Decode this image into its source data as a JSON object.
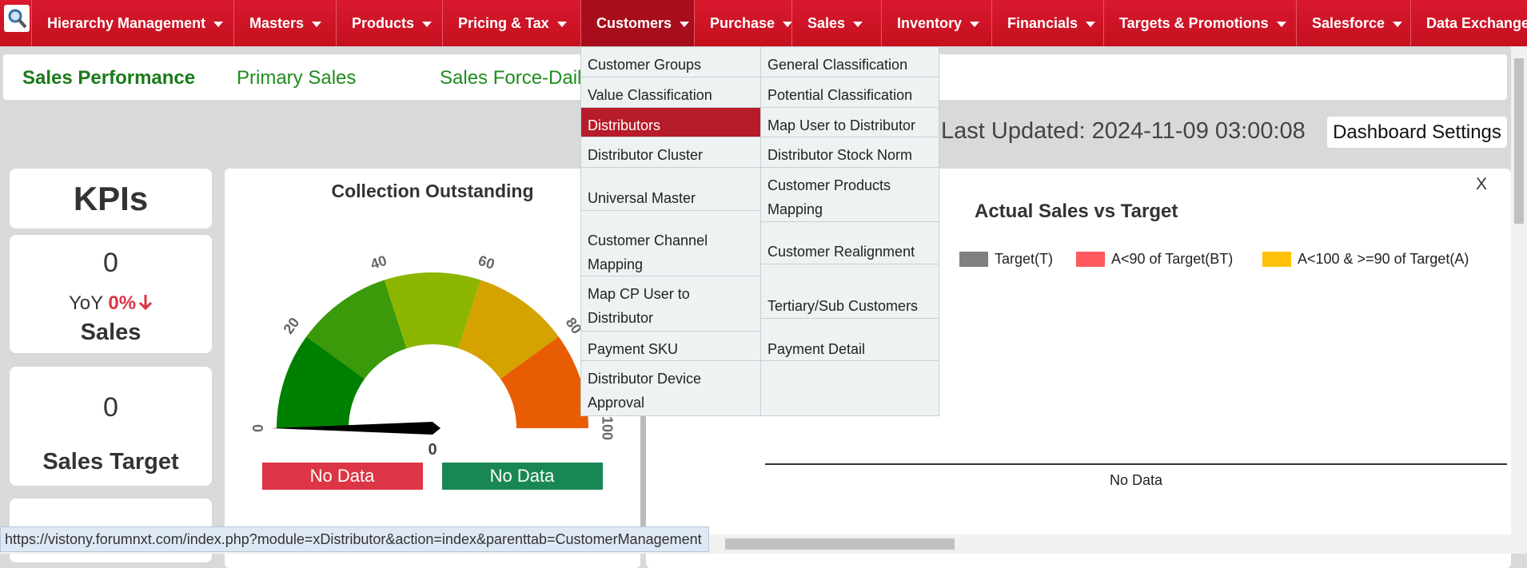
{
  "nav": {
    "menu": [
      "Hierarchy Management",
      "Masters",
      "Products",
      "Pricing & Tax",
      "Customers",
      "Purchase",
      "Sales",
      "Inventory",
      "Financials",
      "Targets & Promotions",
      "Salesforce",
      "Data Exchange"
    ]
  },
  "tabs": [
    "Sales Performance",
    "Primary Sales",
    "Sales Force-Daily"
  ],
  "dropdown": {
    "column_1": [
      "Customer Groups",
      "Value Classification",
      "Distributors",
      "Distributor Cluster",
      "Universal Master",
      "Customer Channel Mapping",
      "Map CP User to Distributor",
      "Payment SKU",
      "Distributor Device Approval"
    ],
    "column_2": [
      "General Classification",
      "Potential Classification",
      "Map User to Distributor",
      "Distributor Stock Norm",
      "Customer Products Mapping",
      "Customer Realignment",
      "Tertiary/Sub Customers",
      "Payment Detail"
    ]
  },
  "last_updated": "Last Updated: 2024-11-09 03:00:08",
  "dashboard_settings": "Dashboard Settings",
  "kpis": {
    "title": "KPIs",
    "cards": [
      {
        "value": 0,
        "yoy_label": "YoY",
        "yoy_value": "0%",
        "label": "Sales"
      },
      {
        "value": 0,
        "label": "Sales Target"
      }
    ]
  },
  "gauge": {
    "title": "Collection Outstanding",
    "ticks": [
      0,
      20,
      40,
      60,
      80,
      100
    ],
    "value": 0,
    "buttons": [
      "No Data",
      "No Data"
    ]
  },
  "sales_chart": {
    "close": "X",
    "title": "Actual Sales vs Target",
    "legend": [
      "Target(T)",
      "A<90 of Target(BT)",
      "A<100 & >=90 of Target(A)"
    ],
    "empty_message": "No Data"
  },
  "status_url": "https://vistony.forumnxt.com/index.php?module=xDistributor&action=index&parenttab=CustomerManagement"
}
